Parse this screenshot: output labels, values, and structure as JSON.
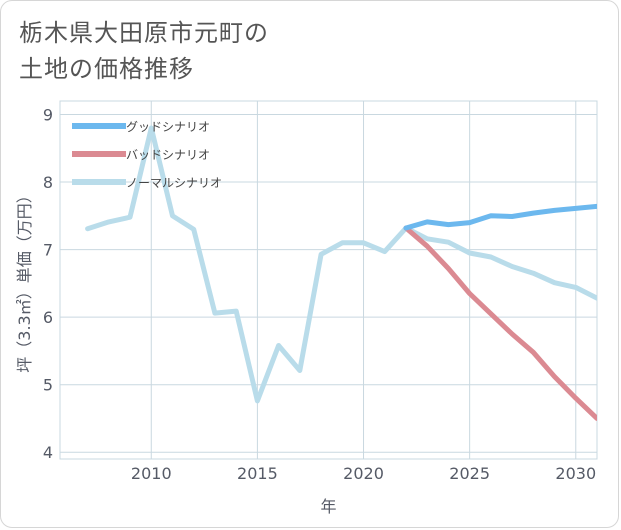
{
  "title": {
    "line1": "栃木県大田原市元町の",
    "line2": "土地の価格推移"
  },
  "colors": {
    "good": "#6cb8ee",
    "bad": "#db8a92",
    "normal": "#b9dcea",
    "grid": "#c9d8e0",
    "axis": "#555a66"
  },
  "chart_data": {
    "type": "line",
    "title": "栃木県大田原市元町の土地の価格推移",
    "xlabel": "年",
    "ylabel": "坪（3.3㎡）単価（万円）",
    "xlim": [
      2005.7,
      2031
    ],
    "ylim": [
      3.9,
      9.2
    ],
    "xticks": [
      2010,
      2015,
      2020,
      2025,
      2030
    ],
    "yticks": [
      4,
      5,
      6,
      7,
      8,
      9
    ],
    "legend_position": "top-left",
    "series": [
      {
        "key": "good",
        "name": "グッドシナリオ",
        "x": [
          2022,
          2023,
          2024,
          2025,
          2026,
          2027,
          2028,
          2029,
          2030,
          2031
        ],
        "values": [
          7.32,
          7.41,
          7.37,
          7.4,
          7.5,
          7.49,
          7.54,
          7.58,
          7.61,
          7.64
        ]
      },
      {
        "key": "bad",
        "name": "バッドシナリオ",
        "x": [
          2022,
          2023,
          2024,
          2025,
          2026,
          2027,
          2028,
          2029,
          2030,
          2031
        ],
        "values": [
          7.32,
          7.05,
          6.72,
          6.35,
          6.05,
          5.75,
          5.48,
          5.12,
          4.8,
          4.5
        ]
      },
      {
        "key": "normal",
        "name": "ノーマルシナリオ",
        "x": [
          2007,
          2008,
          2009,
          2010,
          2011,
          2012,
          2013,
          2014,
          2015,
          2016,
          2017,
          2018,
          2019,
          2020,
          2021,
          2022,
          2023,
          2024,
          2025,
          2026,
          2027,
          2028,
          2029,
          2030,
          2031
        ],
        "values": [
          7.31,
          7.41,
          7.48,
          8.8,
          7.5,
          7.3,
          6.06,
          6.09,
          4.76,
          5.58,
          5.21,
          6.93,
          7.1,
          7.1,
          6.97,
          7.32,
          7.16,
          7.11,
          6.95,
          6.89,
          6.75,
          6.65,
          6.51,
          6.44,
          6.28
        ]
      }
    ]
  }
}
